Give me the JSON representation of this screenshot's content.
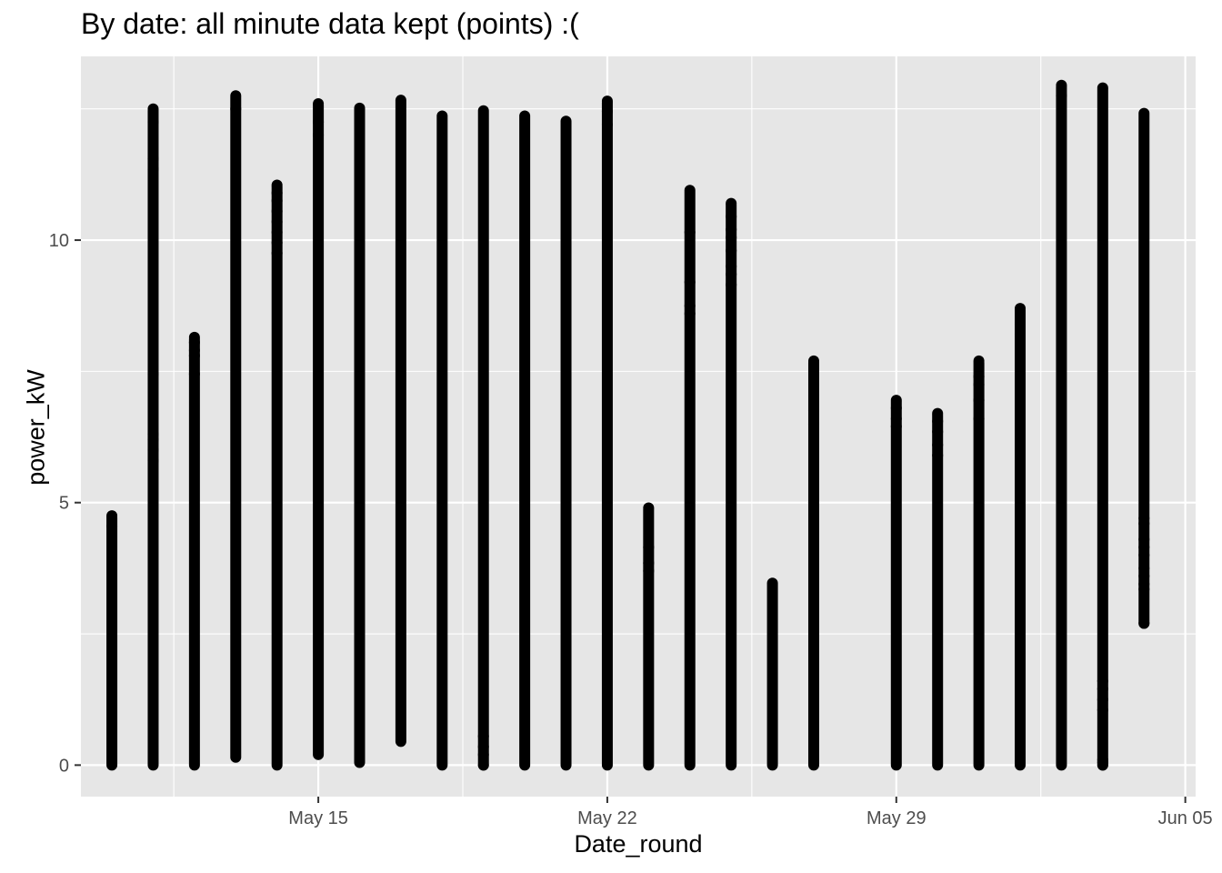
{
  "chart_data": {
    "type": "scatter",
    "title": "By date: all minute data kept (points) :(",
    "xlabel": "Date_round",
    "ylabel": "power_kW",
    "x_ticks": [
      "May 15",
      "May 22",
      "May 29",
      "Jun 05"
    ],
    "y_ticks": [
      "0",
      "5",
      "10"
    ],
    "xlim": [
      "2021-05-09T06:00",
      "2021-06-05T06:00"
    ],
    "ylim": [
      -0.6,
      13.5
    ],
    "grid": true,
    "legend": "none",
    "colors": {
      "panel": "#e6e6e6",
      "grid": "#ffffff",
      "point": "#000000",
      "tick_text": "#4d4d4d"
    },
    "series": [
      {
        "x": "2021-05-10",
        "min": 0,
        "max": 4.75,
        "outliers": [
          4.75,
          4.55
        ]
      },
      {
        "x": "2021-05-11",
        "min": 0,
        "max": 12.5,
        "outliers": [
          12.5,
          12.25,
          11.55,
          11.35,
          7.45,
          6.3,
          6.2,
          6.0,
          5.8
        ]
      },
      {
        "x": "2021-05-12",
        "min": 0,
        "max": 8.15,
        "outliers": [
          8.15,
          8.05,
          7.9,
          7.8,
          7.45
        ]
      },
      {
        "x": "2021-05-13",
        "min": 0.15,
        "max": 12.75,
        "outliers": [
          12.75,
          12.5
        ]
      },
      {
        "x": "2021-05-14",
        "min": 0,
        "max": 11.05,
        "outliers": [
          11.05,
          10.9,
          10.75,
          10.55,
          10.35,
          10.15,
          9.95,
          9.75
        ]
      },
      {
        "x": "2021-05-15",
        "min": 0.2,
        "max": 12.6,
        "outliers": [
          12.6,
          12.25,
          12.0
        ]
      },
      {
        "x": "2021-05-16",
        "min": 0.05,
        "max": 12.55,
        "outliers": []
      },
      {
        "x": "2021-05-17",
        "min": 0.45,
        "max": 12.7,
        "outliers": []
      },
      {
        "x": "2021-05-18",
        "min": 0,
        "max": 12.4,
        "outliers": []
      },
      {
        "x": "2021-05-19",
        "min": 0,
        "max": 12.5,
        "outliers": [
          0.0,
          0.2,
          0.35,
          0.55
        ]
      },
      {
        "x": "2021-05-20",
        "min": 0,
        "max": 12.4,
        "outliers": []
      },
      {
        "x": "2021-05-21",
        "min": 0,
        "max": 12.3,
        "outliers": []
      },
      {
        "x": "2021-05-22",
        "min": 0,
        "max": 12.65,
        "outliers": [
          12.65,
          12.45,
          12.2
        ]
      },
      {
        "x": "2021-05-23",
        "min": 0,
        "max": 4.9,
        "outliers": [
          4.9,
          4.15,
          3.85,
          3.7
        ]
      },
      {
        "x": "2021-05-24",
        "min": 0,
        "max": 10.95,
        "outliers": [
          10.95,
          10.15,
          9.2,
          8.75,
          8.6
        ]
      },
      {
        "x": "2021-05-25",
        "min": 0,
        "max": 10.7,
        "outliers": [
          10.7,
          10.45,
          10.2,
          10.05,
          9.8,
          9.5,
          9.35,
          9.15
        ]
      },
      {
        "x": "2021-05-26",
        "min": 0,
        "max": 3.5,
        "outliers": []
      },
      {
        "x": "2021-05-27",
        "min": 0,
        "max": 7.7,
        "outliers": [
          7.7,
          7.25,
          7.05,
          6.75,
          6.5
        ]
      },
      {
        "x": "2021-05-29",
        "min": 0,
        "max": 6.95,
        "outliers": [
          6.95,
          6.8,
          6.6,
          6.45
        ]
      },
      {
        "x": "2021-05-30",
        "min": 0,
        "max": 6.7,
        "outliers": [
          6.7,
          6.55,
          6.35,
          6.1,
          5.9
        ]
      },
      {
        "x": "2021-05-31",
        "min": 0,
        "max": 7.7,
        "outliers": [
          7.7,
          7.4,
          7.25,
          6.95,
          6.6
        ]
      },
      {
        "x": "2021-06-01",
        "min": 0,
        "max": 8.7,
        "outliers": [
          8.7,
          8.4,
          8.2
        ]
      },
      {
        "x": "2021-06-02",
        "min": 0,
        "max": 12.95,
        "outliers": [
          12.95,
          12.75
        ]
      },
      {
        "x": "2021-06-03",
        "min": 0,
        "max": 12.9,
        "outliers": [
          12.9,
          1.05,
          1.25,
          1.45,
          1.6,
          0.1,
          0.05,
          0.0
        ]
      },
      {
        "x": "2021-06-04",
        "min": 2.7,
        "max": 12.45,
        "outliers": [
          2.7,
          3.35,
          3.45,
          3.6,
          3.75,
          4.0,
          4.15,
          4.3,
          4.6,
          4.7
        ]
      }
    ]
  }
}
